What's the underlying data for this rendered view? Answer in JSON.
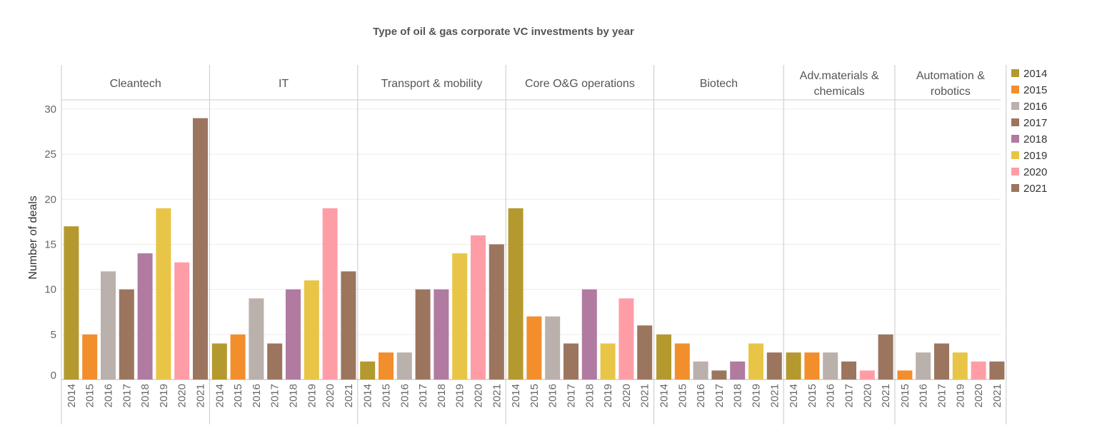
{
  "chart_data": {
    "type": "bar",
    "title": "Type of oil & gas corporate VC investments by year",
    "ylabel": "Number of deals",
    "ylim": [
      0,
      30
    ],
    "yticks": [
      0,
      5,
      10,
      15,
      20,
      25,
      30
    ],
    "grid": true,
    "legend_position": "right",
    "colors": {
      "2014": "#b4992f",
      "2015": "#f28e2b",
      "2016": "#bab0ac",
      "2017": "#9c755f",
      "2018": "#b07aa1",
      "2019": "#e8c547",
      "2020": "#ff9da7",
      "2021": "#9c755f"
    },
    "legend": [
      "2014",
      "2015",
      "2016",
      "2017",
      "2018",
      "2019",
      "2020",
      "2021"
    ],
    "panels": [
      {
        "label": [
          "Cleantech"
        ],
        "years": [
          "2014",
          "2015",
          "2016",
          "2017",
          "2018",
          "2019",
          "2020",
          "2021"
        ],
        "values": [
          17,
          5,
          12,
          10,
          14,
          19,
          13,
          29
        ]
      },
      {
        "label": [
          "IT"
        ],
        "years": [
          "2014",
          "2015",
          "2016",
          "2017",
          "2018",
          "2019",
          "2020",
          "2021"
        ],
        "values": [
          4,
          5,
          9,
          4,
          10,
          11,
          19,
          12
        ]
      },
      {
        "label": [
          "Transport & mobility"
        ],
        "years": [
          "2014",
          "2015",
          "2016",
          "2017",
          "2018",
          "2019",
          "2020",
          "2021"
        ],
        "values": [
          2,
          3,
          3,
          10,
          10,
          14,
          16,
          15
        ]
      },
      {
        "label": [
          "Core O&G operations"
        ],
        "years": [
          "2014",
          "2015",
          "2016",
          "2017",
          "2018",
          "2019",
          "2020",
          "2021"
        ],
        "values": [
          19,
          7,
          7,
          4,
          10,
          4,
          9,
          6
        ]
      },
      {
        "label": [
          "Biotech"
        ],
        "years": [
          "2014",
          "2015",
          "2016",
          "2017",
          "2018",
          "2019",
          "2021"
        ],
        "values": [
          5,
          4,
          2,
          1,
          2,
          4,
          3
        ]
      },
      {
        "label": [
          "Adv.materials &",
          "chemicals"
        ],
        "years": [
          "2014",
          "2015",
          "2016",
          "2017",
          "2020",
          "2021"
        ],
        "values": [
          3,
          3,
          3,
          2,
          1,
          5
        ]
      },
      {
        "label": [
          "Automation &",
          "robotics"
        ],
        "years": [
          "2015",
          "2016",
          "2017",
          "2019",
          "2020",
          "2021"
        ],
        "values": [
          1,
          3,
          4,
          3,
          2,
          2
        ]
      }
    ]
  }
}
